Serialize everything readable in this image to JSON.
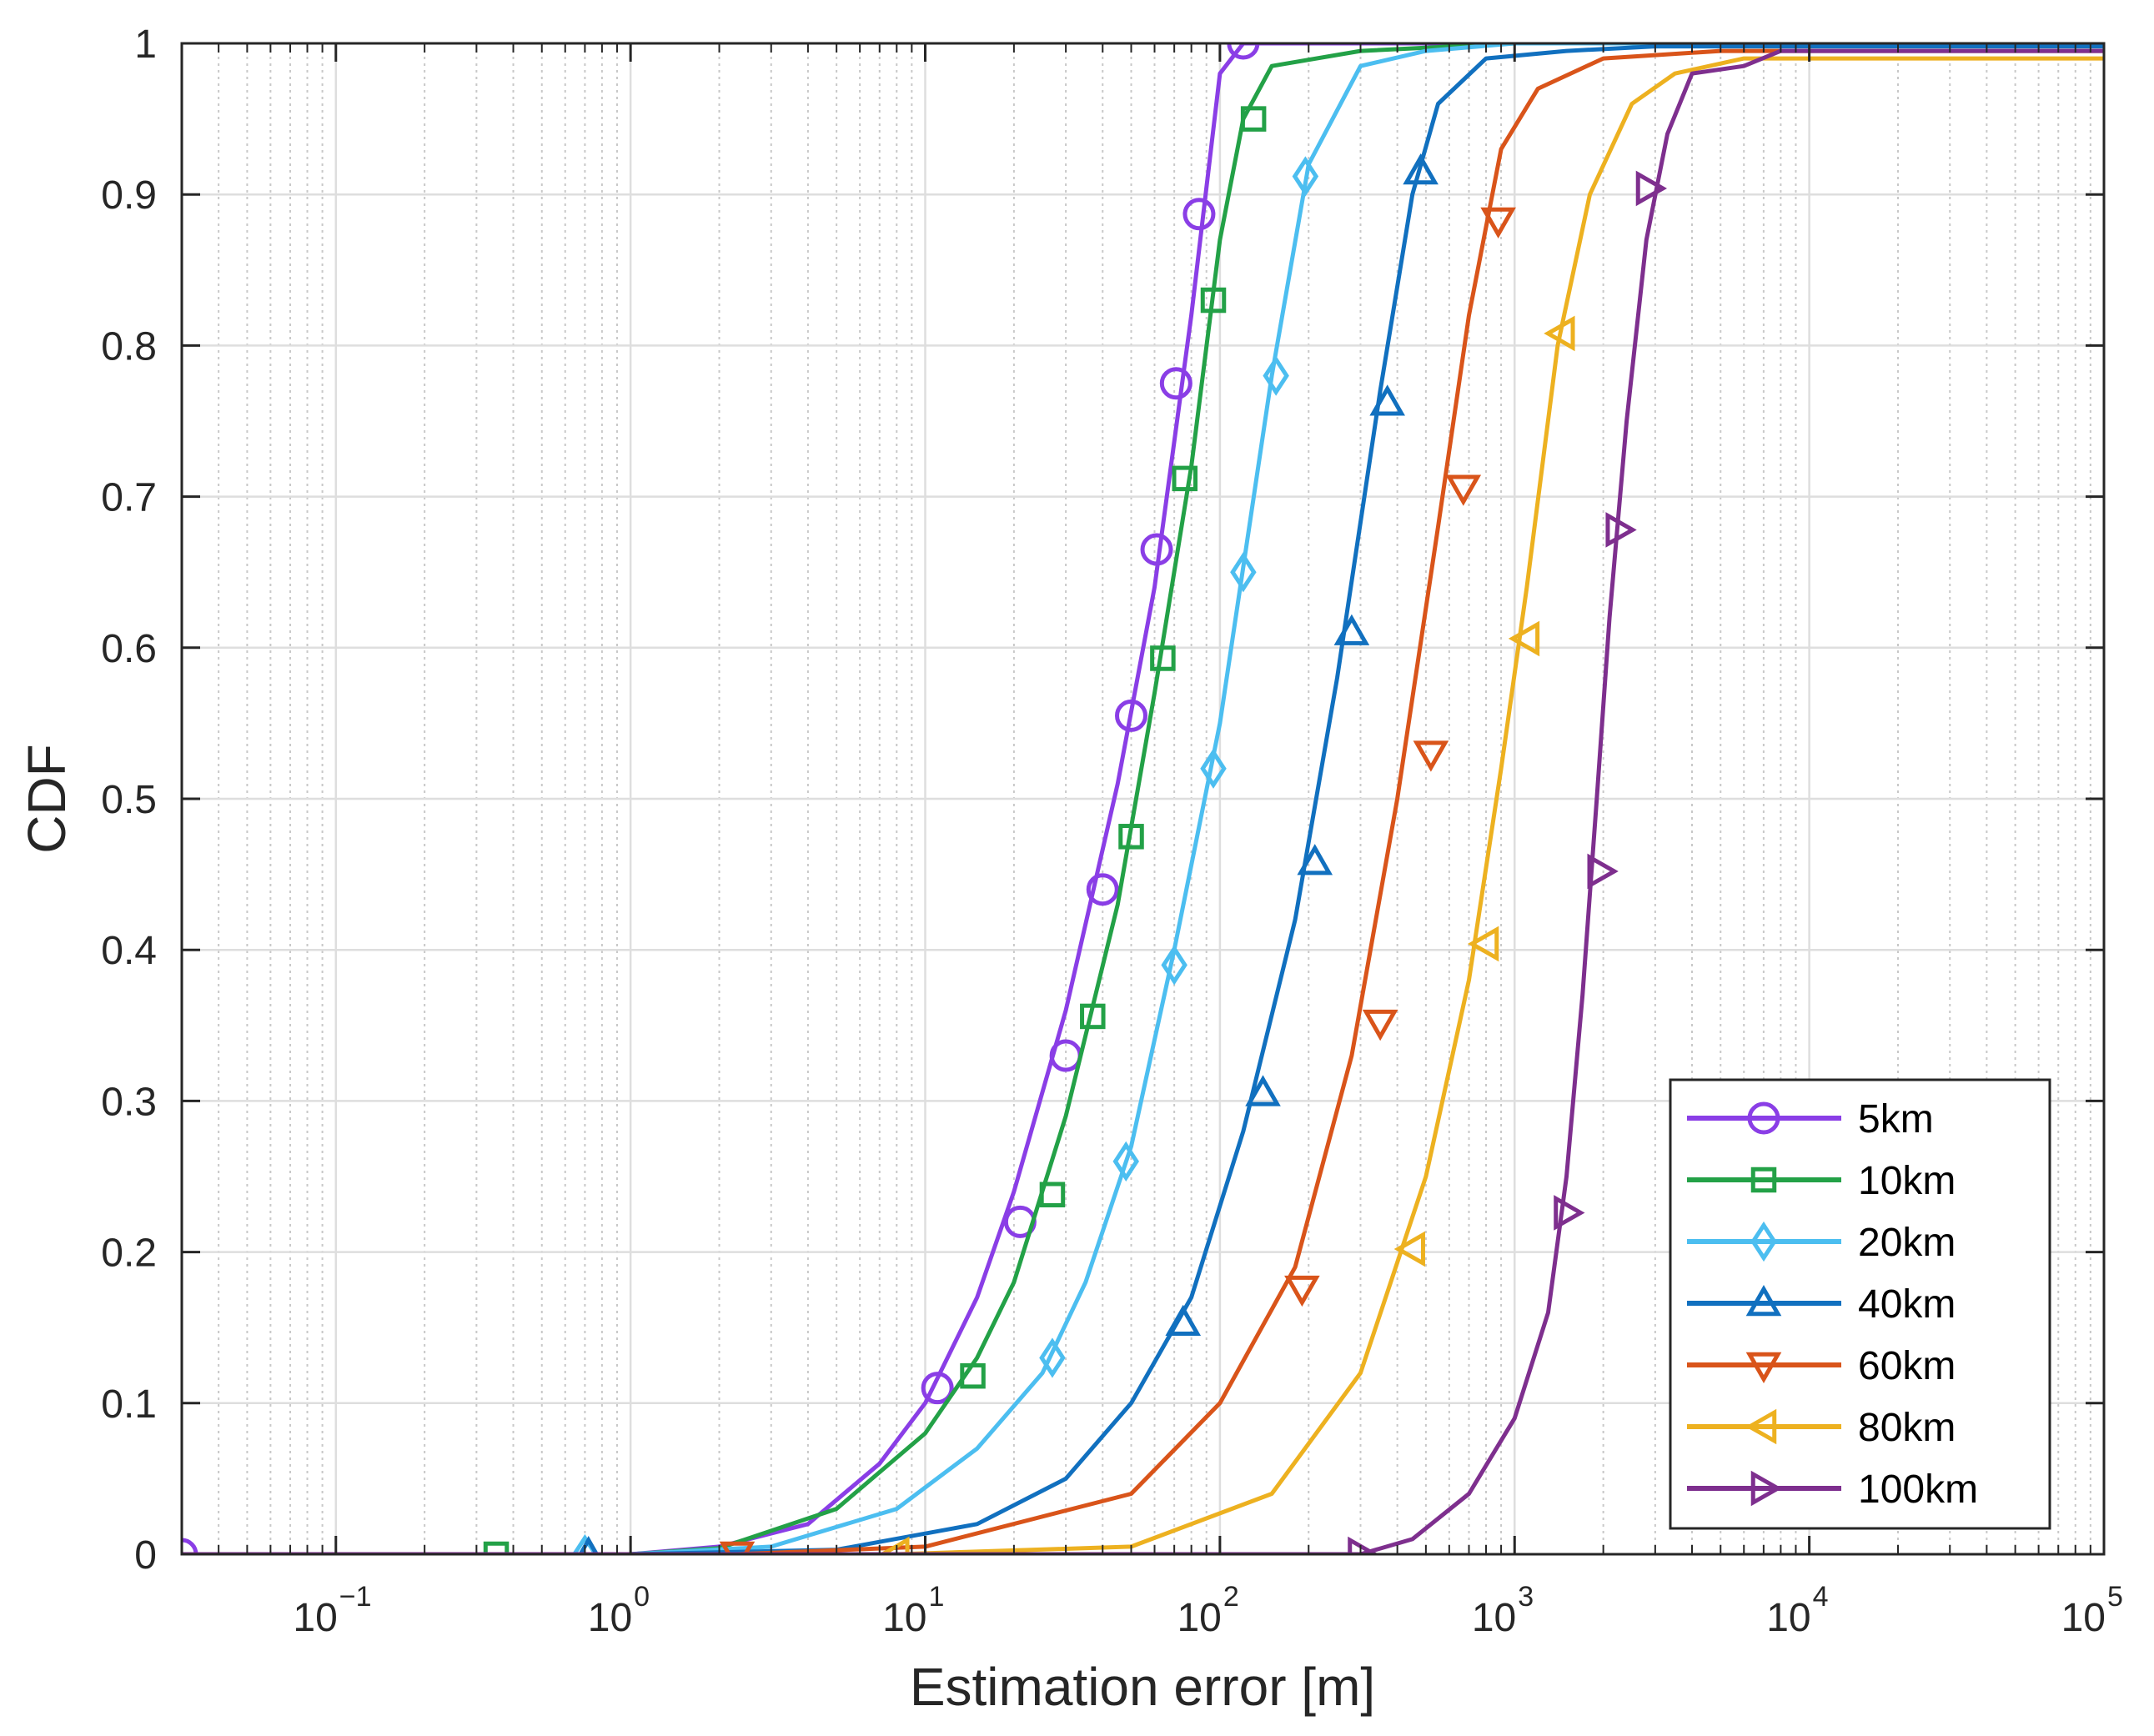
{
  "chart_data": {
    "type": "line",
    "xscale": "log",
    "xlabel": "Estimation error [m]",
    "ylabel": "CDF",
    "xlim": [
      0.03,
      100000
    ],
    "ylim": [
      0,
      1
    ],
    "grid": true,
    "legend_location": "bottom-right",
    "x_ticks": [
      {
        "value": 0.1,
        "base": "10",
        "exp": "−1"
      },
      {
        "value": 1,
        "base": "10",
        "exp": "0"
      },
      {
        "value": 10,
        "base": "10",
        "exp": "1"
      },
      {
        "value": 100,
        "base": "10",
        "exp": "2"
      },
      {
        "value": 1000,
        "base": "10",
        "exp": "3"
      },
      {
        "value": 10000,
        "base": "10",
        "exp": "4"
      },
      {
        "value": 100000,
        "base": "10",
        "exp": "5"
      }
    ],
    "y_ticks": [
      {
        "value": 0,
        "label": "0"
      },
      {
        "value": 0.1,
        "label": "0.1"
      },
      {
        "value": 0.2,
        "label": "0.2"
      },
      {
        "value": 0.3,
        "label": "0.3"
      },
      {
        "value": 0.4,
        "label": "0.4"
      },
      {
        "value": 0.5,
        "label": "0.5"
      },
      {
        "value": 0.6,
        "label": "0.6"
      },
      {
        "value": 0.7,
        "label": "0.7"
      },
      {
        "value": 0.8,
        "label": "0.8"
      },
      {
        "value": 0.9,
        "label": "0.9"
      },
      {
        "value": 1,
        "label": "1"
      }
    ],
    "series": [
      {
        "name": "5km",
        "color": "#8a3ee6",
        "marker": "circle",
        "x": [
          0.03,
          0.5,
          1,
          2,
          4,
          7,
          10,
          15,
          20,
          30,
          45,
          60,
          80,
          100,
          120,
          200,
          100000
        ],
        "y": [
          0,
          0,
          0,
          0.005,
          0.02,
          0.06,
          0.1,
          0.17,
          0.24,
          0.36,
          0.51,
          0.64,
          0.82,
          0.98,
          1.0,
          1.0,
          1.0
        ],
        "markers_x": [
          0.03,
          11,
          21,
          30,
          40,
          50,
          61,
          71,
          85,
          120
        ],
        "markers_y": [
          0,
          0.11,
          0.22,
          0.33,
          0.44,
          0.555,
          0.665,
          0.775,
          0.887,
          1.0
        ]
      },
      {
        "name": "10km",
        "color": "#23a147",
        "marker": "square",
        "x": [
          0.03,
          0.5,
          1,
          2,
          5,
          10,
          15,
          20,
          30,
          45,
          60,
          80,
          100,
          120,
          150,
          300,
          1000,
          10000,
          100000
        ],
        "y": [
          0,
          0,
          0,
          0.004,
          0.03,
          0.08,
          0.13,
          0.18,
          0.29,
          0.43,
          0.57,
          0.72,
          0.87,
          0.95,
          0.985,
          0.995,
          1.0,
          1.0,
          1.0
        ],
        "markers_x": [
          0.35,
          14.5,
          27,
          37,
          50,
          64,
          76,
          95,
          130
        ],
        "markers_y": [
          0,
          0.118,
          0.238,
          0.356,
          0.475,
          0.593,
          0.712,
          0.83,
          0.95
        ]
      },
      {
        "name": "20km",
        "color": "#4cbef0",
        "marker": "diamond",
        "x": [
          0.03,
          0.5,
          1,
          3,
          8,
          15,
          25,
          35,
          50,
          70,
          100,
          150,
          200,
          300,
          500,
          1000,
          10000,
          100000
        ],
        "y": [
          0,
          0,
          0,
          0.005,
          0.03,
          0.07,
          0.12,
          0.18,
          0.27,
          0.4,
          0.55,
          0.78,
          0.92,
          0.985,
          0.995,
          1.0,
          1.0,
          1.0
        ],
        "markers_x": [
          0.7,
          27,
          48,
          70,
          95,
          120,
          155,
          195
        ],
        "markers_y": [
          0,
          0.13,
          0.26,
          0.39,
          0.52,
          0.65,
          0.78,
          0.912
        ]
      },
      {
        "name": "40km",
        "color": "#1170bf",
        "marker": "triangle-up",
        "x": [
          0.03,
          0.5,
          1,
          5,
          15,
          30,
          50,
          80,
          120,
          180,
          250,
          350,
          450,
          550,
          800,
          1500,
          3000,
          100000
        ],
        "y": [
          0,
          0,
          0,
          0.003,
          0.02,
          0.05,
          0.1,
          0.17,
          0.28,
          0.42,
          0.58,
          0.77,
          0.9,
          0.96,
          0.99,
          0.995,
          0.998,
          0.998
        ],
        "markers_x": [
          0.72,
          75,
          140,
          210,
          280,
          370,
          480
        ],
        "markers_y": [
          0,
          0.153,
          0.305,
          0.458,
          0.61,
          0.762,
          0.915
        ]
      },
      {
        "name": "60km",
        "color": "#d9541a",
        "marker": "triangle-down",
        "x": [
          0.03,
          0.5,
          1,
          2.3,
          10,
          50,
          100,
          180,
          280,
          400,
          550,
          700,
          900,
          1200,
          2000,
          5000,
          100000
        ],
        "y": [
          0,
          0,
          0,
          0,
          0.005,
          0.04,
          0.1,
          0.19,
          0.33,
          0.5,
          0.68,
          0.82,
          0.93,
          0.97,
          0.99,
          0.995,
          0.995
        ],
        "markers_x": [
          2.3,
          190,
          350,
          520,
          670,
          880
        ],
        "markers_y": [
          0,
          0.176,
          0.352,
          0.53,
          0.706,
          0.883
        ]
      },
      {
        "name": "80km",
        "color": "#edb120",
        "marker": "triangle-left",
        "x": [
          0.03,
          1,
          8,
          50,
          150,
          300,
          500,
          700,
          900,
          1100,
          1400,
          1800,
          2500,
          3500,
          6000,
          100000
        ],
        "y": [
          0,
          0,
          0,
          0.005,
          0.04,
          0.12,
          0.25,
          0.38,
          0.52,
          0.64,
          0.8,
          0.9,
          0.96,
          0.98,
          0.99,
          0.99
        ],
        "markers_x": [
          8,
          450,
          800,
          1100,
          1450
        ],
        "markers_y": [
          0,
          0.202,
          0.404,
          0.606,
          0.808
        ]
      },
      {
        "name": "100km",
        "color": "#7e2f8e",
        "marker": "triangle-right",
        "x": [
          0.03,
          300,
          450,
          700,
          1000,
          1300,
          1500,
          1700,
          1900,
          2100,
          2400,
          2800,
          3300,
          4000,
          6000,
          8000,
          100000
        ],
        "y": [
          0,
          0,
          0.01,
          0.04,
          0.09,
          0.16,
          0.25,
          0.37,
          0.5,
          0.62,
          0.75,
          0.87,
          0.94,
          0.98,
          0.985,
          0.995,
          0.995
        ],
        "markers_x": [
          300,
          1500,
          1950,
          2250,
          2850
        ],
        "markers_y": [
          0,
          0.226,
          0.452,
          0.678,
          0.904
        ]
      }
    ]
  }
}
